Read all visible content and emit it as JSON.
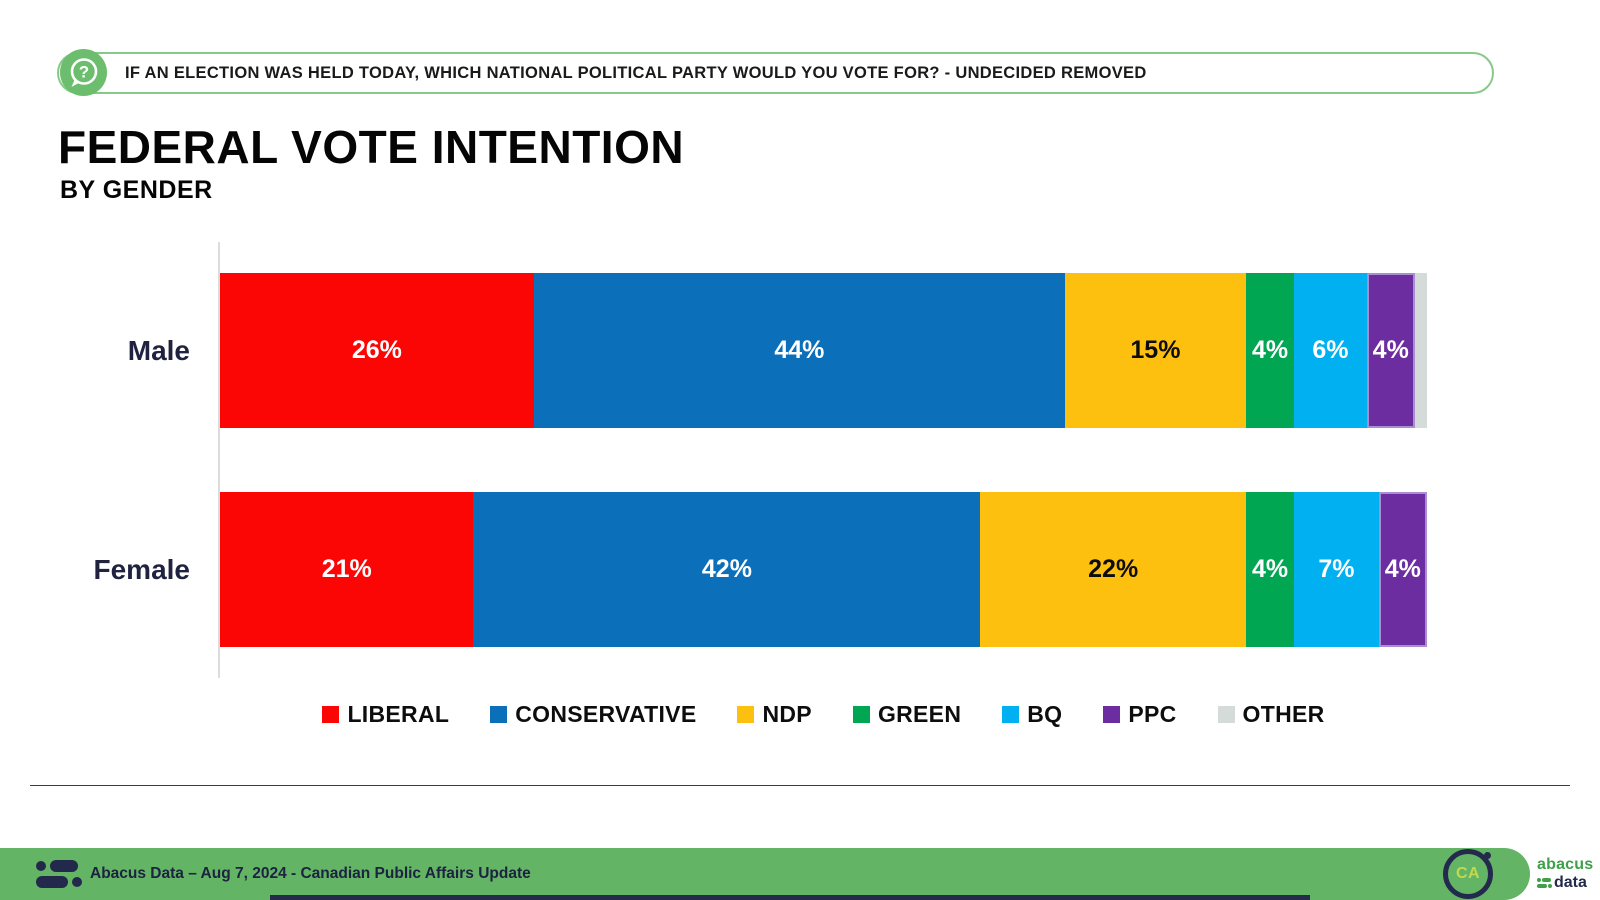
{
  "banner": {
    "icon": "question-speech-bubble-icon",
    "icon_glyph": "?",
    "text": "IF AN ELECTION WAS HELD TODAY, WHICH NATIONAL POLITICAL PARTY WOULD YOU VOTE FOR? - UNDECIDED REMOVED",
    "border_color": "#86c988",
    "icon_color": "#6cbe6e"
  },
  "title": "FEDERAL VOTE INTENTION",
  "subtitle": "BY GENDER",
  "chart_data": {
    "type": "bar",
    "orientation": "horizontal",
    "stacked": true,
    "title": "FEDERAL VOTE INTENTION",
    "subtitle": "BY GENDER",
    "categories": [
      "Male",
      "Female"
    ],
    "series": [
      {
        "name": "LIBERAL",
        "color": "#fb0505",
        "label_color": "#ffffff",
        "values": [
          26,
          21
        ]
      },
      {
        "name": "CONSERVATIVE",
        "color": "#0b70b9",
        "label_color": "#ffffff",
        "values": [
          44,
          42
        ]
      },
      {
        "name": "NDP",
        "color": "#fec00f",
        "label_color": "#0d0d0d",
        "values": [
          15,
          22
        ]
      },
      {
        "name": "GREEN",
        "color": "#00a651",
        "label_color": "#ffffff",
        "values": [
          4,
          4
        ]
      },
      {
        "name": "BQ",
        "color": "#00b0f0",
        "label_color": "#ffffff",
        "values": [
          6,
          7
        ]
      },
      {
        "name": "PPC",
        "color": "#6b2d9f",
        "label_color": "#ffffff",
        "values": [
          4,
          4
        ]
      },
      {
        "name": "OTHER",
        "color": "#d5dbd8",
        "label_color": "#0d0d0d",
        "values": [
          1,
          0
        ]
      }
    ],
    "value_suffix": "%",
    "label_min_value": 2,
    "xlim": [
      0,
      100
    ],
    "grid": false,
    "legend_position": "bottom"
  },
  "footer": {
    "caption": "Abacus Data – Aug 7, 2024 - Canadian Public Affairs Update",
    "ca_label": "CA",
    "brand_line1": "abacus",
    "brand_line2": "data",
    "bar_color": "#64b465"
  }
}
